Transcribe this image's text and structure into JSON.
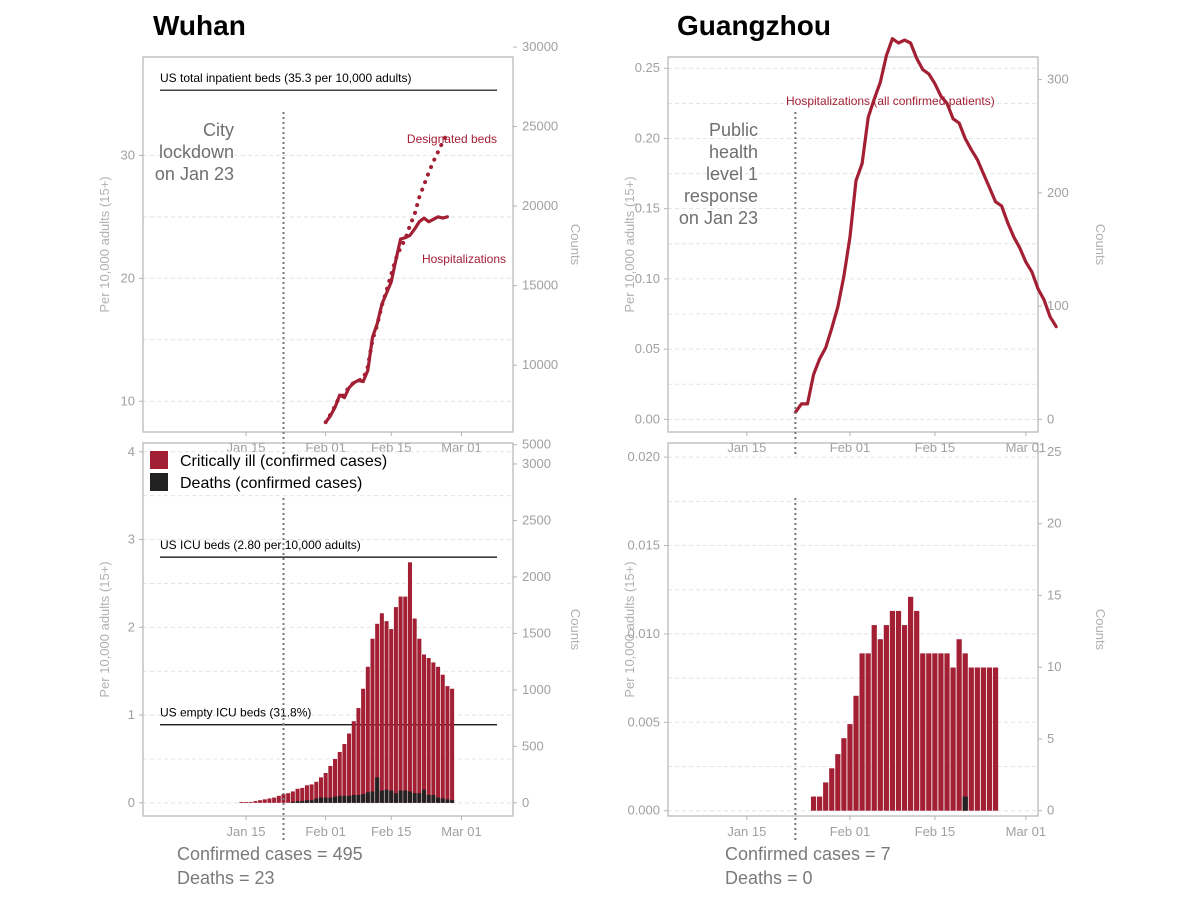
{
  "panels": {
    "wuhan": {
      "title": "Wuhan",
      "confirmed_cases_text": "Confirmed cases = 495",
      "deaths_text": "Deaths = 23"
    },
    "guangzhou": {
      "title": "Guangzhou",
      "confirmed_cases_text": "Confirmed cases = 7",
      "deaths_text": "Deaths = 0"
    }
  },
  "colors": {
    "critical": "#a31f34",
    "deaths": "#222222",
    "hospital_line": "#a31f34"
  },
  "chart_data": [
    {
      "id": "wuhan-hosp",
      "type": "line",
      "title": "Wuhan",
      "ylabel": "Per 10,000 adults (15+)",
      "ylabel_right": "Counts",
      "ylim": [
        7.5,
        38
      ],
      "y_ticks": [
        10,
        20,
        30
      ],
      "y_right_ticks": [
        5000,
        10000,
        15000,
        20000,
        25000,
        30000
      ],
      "y_right_labels": [
        "5000",
        "10000",
        "15000",
        "20000",
        "25000",
        "30000"
      ],
      "right_per_unit": 773,
      "x_day_min": -8,
      "x_day_max": 71,
      "x_ticks": [
        14,
        31,
        45,
        60
      ],
      "x_tick_labels": [
        "Jan 15",
        "Feb 01",
        "Feb 15",
        "Mar 01"
      ],
      "event_day": 22,
      "event_text": [
        "City",
        "lockdown",
        "on Jan 23"
      ],
      "reference_lines": [
        {
          "value": 35.3,
          "label": "US total inpatient beds (35.3 per 10,000 adults)"
        }
      ],
      "series": [
        {
          "name": "Hospitalizations",
          "label": "Hospitalizations",
          "style": "solid",
          "x_start": 31,
          "values": [
            8.3,
            8.8,
            9.5,
            10.5,
            10.3,
            11.1,
            11.5,
            11.7,
            11.6,
            12.5,
            15.2,
            16.3,
            17.9,
            18.8,
            19.7,
            21.5,
            23.2,
            23.3,
            23.5,
            24.0,
            24.6,
            24.9,
            24.6,
            24.8,
            25.0,
            24.9,
            25.0
          ]
        },
        {
          "name": "Designated beds",
          "label": "Designated beds",
          "style": "dotted",
          "x_start": 31,
          "values": [
            8.3,
            8.9,
            9.6,
            10.4,
            10.5,
            11.2,
            11.5,
            11.7,
            11.8,
            12.8,
            15.0,
            16.2,
            17.8,
            19.0,
            20.3,
            21.6,
            22.5,
            23.2,
            24.3,
            25.2,
            26.6,
            27.6,
            28.6,
            29.5,
            30.3,
            31.1,
            31.8
          ]
        }
      ]
    },
    {
      "id": "wuhan-critical",
      "type": "bar",
      "ylabel": "Per 10,000 adults (15+)",
      "ylabel_right": "Counts",
      "ylim": [
        -0.15,
        4.1
      ],
      "y_ticks": [
        0,
        1,
        2,
        3,
        4
      ],
      "y_right_ticks": [
        0,
        500,
        1000,
        1500,
        2000,
        2500,
        3000
      ],
      "y_right_labels": [
        "0",
        "500",
        "1000",
        "1500",
        "2000",
        "2500",
        "3000"
      ],
      "right_per_unit": 777,
      "x_day_min": -8,
      "x_day_max": 71,
      "x_ticks": [
        14,
        31,
        45,
        60
      ],
      "x_tick_labels": [
        "Jan 15",
        "Feb 01",
        "Feb 15",
        "Mar 01"
      ],
      "event_day": 22,
      "reference_lines": [
        {
          "value": 2.8,
          "label": "US ICU beds (2.80 per 10,000 adults)"
        },
        {
          "value": 0.89,
          "label": "US empty ICU beds (31.8%)"
        }
      ],
      "legend": [
        "Critically ill (confirmed cases)",
        "Deaths (confirmed cases)"
      ],
      "x_start": 13,
      "series": [
        {
          "name": "Critically ill (confirmed cases)",
          "values": [
            0.01,
            0.01,
            0.01,
            0.02,
            0.03,
            0.04,
            0.05,
            0.06,
            0.08,
            0.1,
            0.11,
            0.13,
            0.16,
            0.17,
            0.2,
            0.21,
            0.24,
            0.29,
            0.34,
            0.42,
            0.5,
            0.58,
            0.67,
            0.79,
            0.93,
            1.08,
            1.3,
            1.55,
            1.87,
            2.04,
            2.16,
            2.07,
            1.98,
            2.23,
            2.35,
            2.35,
            2.74,
            2.1,
            1.87,
            1.69,
            1.65,
            1.6,
            1.55,
            1.46,
            1.33,
            1.3
          ]
        },
        {
          "name": "Deaths (confirmed cases)",
          "values": [
            0,
            0,
            0,
            0,
            0,
            0,
            0,
            0,
            0,
            0,
            0,
            0.01,
            0.02,
            0.02,
            0.03,
            0.03,
            0.05,
            0.06,
            0.06,
            0.06,
            0.07,
            0.08,
            0.08,
            0.08,
            0.09,
            0.09,
            0.1,
            0.12,
            0.13,
            0.29,
            0.14,
            0.15,
            0.14,
            0.11,
            0.14,
            0.14,
            0.13,
            0.11,
            0.11,
            0.15,
            0.09,
            0.09,
            0.06,
            0.05,
            0.04,
            0.03
          ]
        }
      ]
    },
    {
      "id": "guangzhou-hosp",
      "type": "line",
      "title": "Guangzhou",
      "ylabel": "Per 10,000 adults (15+)",
      "ylabel_right": "Counts",
      "ylim": [
        -0.009,
        0.258
      ],
      "y_ticks": [
        0.0,
        0.05,
        0.1,
        0.15,
        0.2,
        0.25
      ],
      "y_tick_labels": [
        "0.00",
        "0.05",
        "0.10",
        "0.15",
        "0.20",
        "0.25"
      ],
      "y_right_ticks": [
        0,
        100,
        200,
        300
      ],
      "y_right_labels": [
        "0",
        "100",
        "200",
        "300"
      ],
      "right_per_unit": 1240,
      "x_day_min": 1,
      "x_day_max": 62,
      "x_ticks": [
        14,
        31,
        45,
        60
      ],
      "x_tick_labels": [
        "Jan 15",
        "Feb 01",
        "Feb 15",
        "Mar 01"
      ],
      "event_day": 22,
      "event_text": [
        "Public",
        "health",
        "level 1",
        "response",
        "on Jan 23"
      ],
      "series": [
        {
          "name": "Hospitalizations (all confirmed patients)",
          "label": "Hospitalizations (all confirmed patients)",
          "style": "solid",
          "x_start": 22,
          "values": [
            0.005,
            0.011,
            0.011,
            0.032,
            0.043,
            0.051,
            0.065,
            0.08,
            0.102,
            0.13,
            0.17,
            0.182,
            0.215,
            0.228,
            0.24,
            0.259,
            0.271,
            0.268,
            0.27,
            0.268,
            0.257,
            0.249,
            0.246,
            0.239,
            0.23,
            0.225,
            0.214,
            0.211,
            0.2,
            0.192,
            0.185,
            0.175,
            0.165,
            0.155,
            0.152,
            0.14,
            0.13,
            0.122,
            0.112,
            0.105,
            0.093,
            0.085,
            0.073,
            0.066
          ]
        }
      ]
    },
    {
      "id": "guangzhou-critical",
      "type": "bar",
      "ylabel": "Per 10,000 adults (15+)",
      "ylabel_right": "Counts",
      "ylim": [
        -0.0003,
        0.0208
      ],
      "y_ticks": [
        0,
        0.005,
        0.01,
        0.015,
        0.02
      ],
      "y_tick_labels": [
        "0.000",
        "0.005",
        "0.010",
        "0.015",
        "0.020"
      ],
      "y_right_ticks": [
        0,
        5,
        10,
        15,
        20,
        25
      ],
      "y_right_labels": [
        "0",
        "5",
        "10",
        "15",
        "20",
        "25"
      ],
      "right_per_unit": 1232,
      "x_day_min": 1,
      "x_day_max": 62,
      "x_ticks": [
        14,
        31,
        45,
        60
      ],
      "x_tick_labels": [
        "Jan 15",
        "Feb 01",
        "Feb 15",
        "Mar 01"
      ],
      "event_day": 22,
      "x_start": 25,
      "series": [
        {
          "name": "Critically ill (confirmed cases)",
          "values": [
            0.0008,
            0.0008,
            0.0016,
            0.0024,
            0.0032,
            0.0041,
            0.0049,
            0.0065,
            0.0089,
            0.0089,
            0.0105,
            0.0097,
            0.0105,
            0.0113,
            0.0113,
            0.0105,
            0.0121,
            0.0113,
            0.0089,
            0.0089,
            0.0089,
            0.0089,
            0.0089,
            0.0081,
            0.0097,
            0.0089,
            0.0081,
            0.0081,
            0.0081,
            0.0081,
            0.0081
          ]
        },
        {
          "name": "Deaths (confirmed cases)",
          "values": [
            0,
            0,
            0,
            0,
            0,
            0,
            0,
            0,
            0,
            0,
            0,
            0,
            0,
            0,
            0,
            0,
            0,
            0,
            0,
            0,
            0,
            0,
            0,
            0,
            0,
            0.0008,
            0,
            0,
            0,
            0,
            0
          ]
        }
      ]
    }
  ]
}
